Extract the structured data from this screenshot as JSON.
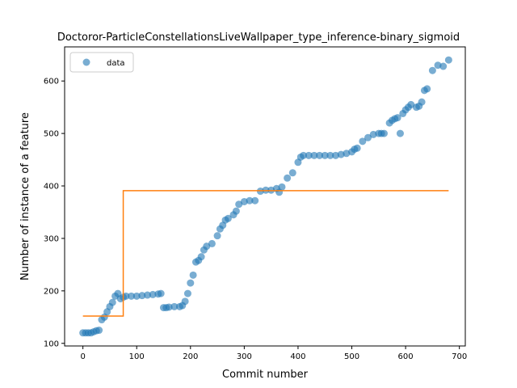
{
  "chart_data": {
    "type": "scatter",
    "title": "Doctoror-ParticleConstellationsLiveWallpaper_type_inference-binary_sigmoid",
    "xlabel": "Commit number",
    "ylabel": "Number of instance of a feature",
    "xlim": [
      -34,
      711
    ],
    "ylim": [
      95,
      665
    ],
    "xticks": [
      0,
      100,
      200,
      300,
      400,
      500,
      600,
      700
    ],
    "yticks": [
      100,
      200,
      300,
      400,
      500,
      600
    ],
    "grid": false,
    "legend": {
      "placement": "upper-left",
      "entries": [
        "data"
      ]
    },
    "colors": {
      "data": "#1f77b4",
      "fit": "#ff7f0e"
    },
    "series": [
      {
        "name": "data",
        "kind": "scatter",
        "x": [
          0,
          5,
          10,
          15,
          20,
          25,
          30,
          35,
          40,
          45,
          50,
          55,
          60,
          65,
          70,
          75,
          80,
          90,
          100,
          110,
          120,
          130,
          140,
          145,
          150,
          155,
          160,
          170,
          180,
          185,
          190,
          195,
          200,
          205,
          210,
          215,
          220,
          225,
          230,
          240,
          250,
          255,
          260,
          265,
          270,
          280,
          285,
          290,
          300,
          310,
          320,
          330,
          340,
          350,
          360,
          365,
          370,
          380,
          390,
          400,
          405,
          410,
          420,
          430,
          440,
          450,
          460,
          470,
          480,
          490,
          500,
          505,
          510,
          520,
          530,
          540,
          550,
          555,
          560,
          570,
          575,
          580,
          585,
          590,
          595,
          600,
          605,
          610,
          620,
          625,
          630,
          635,
          640,
          650,
          660,
          670,
          680
        ],
        "y": [
          120,
          120,
          120,
          120,
          122,
          124,
          125,
          145,
          150,
          160,
          170,
          178,
          190,
          195,
          185,
          188,
          190,
          190,
          190,
          191,
          192,
          193,
          194,
          195,
          168,
          168,
          169,
          170,
          170,
          172,
          180,
          195,
          215,
          230,
          255,
          258,
          265,
          278,
          285,
          290,
          305,
          318,
          325,
          335,
          338,
          345,
          352,
          365,
          370,
          372,
          372,
          390,
          392,
          392,
          395,
          388,
          398,
          415,
          425,
          445,
          455,
          458,
          458,
          458,
          458,
          458,
          458,
          458,
          460,
          462,
          465,
          470,
          472,
          485,
          492,
          498,
          500,
          500,
          500,
          520,
          525,
          528,
          530,
          500,
          538,
          545,
          550,
          555,
          550,
          552,
          560,
          582,
          585,
          620,
          630,
          628,
          640
        ]
      },
      {
        "name": "",
        "kind": "line",
        "x": [
          0,
          75,
          75,
          680
        ],
        "y": [
          152,
          152,
          391,
          391
        ]
      }
    ]
  }
}
